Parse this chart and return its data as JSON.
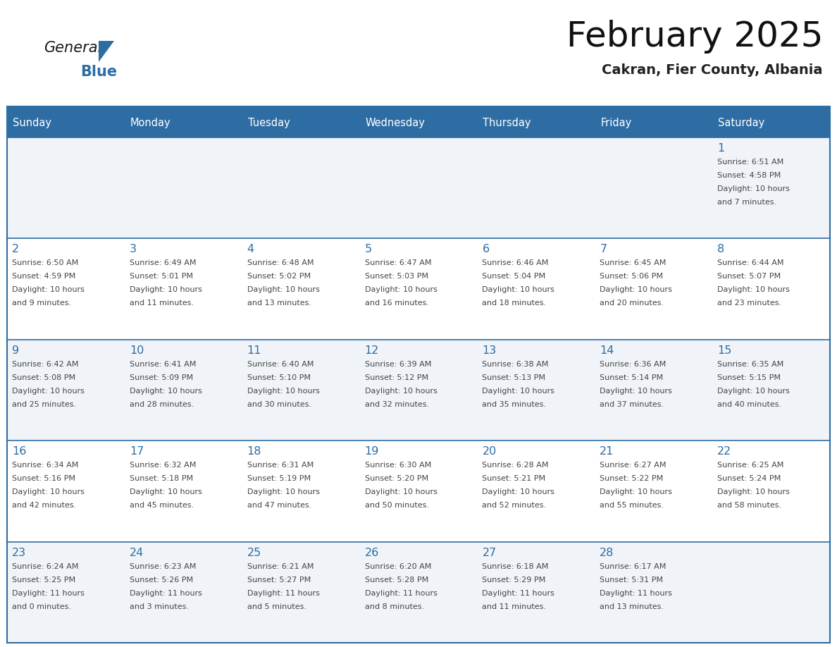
{
  "title": "February 2025",
  "subtitle": "Cakran, Fier County, Albania",
  "header_bg": "#2E6DA4",
  "header_text_color": "#FFFFFF",
  "cell_bg_light": "#F0F4F8",
  "cell_bg_white": "#FFFFFF",
  "day_number_color": "#2E6DA4",
  "info_text_color": "#444444",
  "border_color": "#2E6DA4",
  "grid_line_color": "#2E6DA4",
  "days_of_week": [
    "Sunday",
    "Monday",
    "Tuesday",
    "Wednesday",
    "Thursday",
    "Friday",
    "Saturday"
  ],
  "calendar_data": [
    [
      null,
      null,
      null,
      null,
      null,
      null,
      {
        "day": 1,
        "sunrise": "6:51 AM",
        "sunset": "4:58 PM",
        "daylight_hours": 10,
        "daylight_minutes": 7
      }
    ],
    [
      {
        "day": 2,
        "sunrise": "6:50 AM",
        "sunset": "4:59 PM",
        "daylight_hours": 10,
        "daylight_minutes": 9
      },
      {
        "day": 3,
        "sunrise": "6:49 AM",
        "sunset": "5:01 PM",
        "daylight_hours": 10,
        "daylight_minutes": 11
      },
      {
        "day": 4,
        "sunrise": "6:48 AM",
        "sunset": "5:02 PM",
        "daylight_hours": 10,
        "daylight_minutes": 13
      },
      {
        "day": 5,
        "sunrise": "6:47 AM",
        "sunset": "5:03 PM",
        "daylight_hours": 10,
        "daylight_minutes": 16
      },
      {
        "day": 6,
        "sunrise": "6:46 AM",
        "sunset": "5:04 PM",
        "daylight_hours": 10,
        "daylight_minutes": 18
      },
      {
        "day": 7,
        "sunrise": "6:45 AM",
        "sunset": "5:06 PM",
        "daylight_hours": 10,
        "daylight_minutes": 20
      },
      {
        "day": 8,
        "sunrise": "6:44 AM",
        "sunset": "5:07 PM",
        "daylight_hours": 10,
        "daylight_minutes": 23
      }
    ],
    [
      {
        "day": 9,
        "sunrise": "6:42 AM",
        "sunset": "5:08 PM",
        "daylight_hours": 10,
        "daylight_minutes": 25
      },
      {
        "day": 10,
        "sunrise": "6:41 AM",
        "sunset": "5:09 PM",
        "daylight_hours": 10,
        "daylight_minutes": 28
      },
      {
        "day": 11,
        "sunrise": "6:40 AM",
        "sunset": "5:10 PM",
        "daylight_hours": 10,
        "daylight_minutes": 30
      },
      {
        "day": 12,
        "sunrise": "6:39 AM",
        "sunset": "5:12 PM",
        "daylight_hours": 10,
        "daylight_minutes": 32
      },
      {
        "day": 13,
        "sunrise": "6:38 AM",
        "sunset": "5:13 PM",
        "daylight_hours": 10,
        "daylight_minutes": 35
      },
      {
        "day": 14,
        "sunrise": "6:36 AM",
        "sunset": "5:14 PM",
        "daylight_hours": 10,
        "daylight_minutes": 37
      },
      {
        "day": 15,
        "sunrise": "6:35 AM",
        "sunset": "5:15 PM",
        "daylight_hours": 10,
        "daylight_minutes": 40
      }
    ],
    [
      {
        "day": 16,
        "sunrise": "6:34 AM",
        "sunset": "5:16 PM",
        "daylight_hours": 10,
        "daylight_minutes": 42
      },
      {
        "day": 17,
        "sunrise": "6:32 AM",
        "sunset": "5:18 PM",
        "daylight_hours": 10,
        "daylight_minutes": 45
      },
      {
        "day": 18,
        "sunrise": "6:31 AM",
        "sunset": "5:19 PM",
        "daylight_hours": 10,
        "daylight_minutes": 47
      },
      {
        "day": 19,
        "sunrise": "6:30 AM",
        "sunset": "5:20 PM",
        "daylight_hours": 10,
        "daylight_minutes": 50
      },
      {
        "day": 20,
        "sunrise": "6:28 AM",
        "sunset": "5:21 PM",
        "daylight_hours": 10,
        "daylight_minutes": 52
      },
      {
        "day": 21,
        "sunrise": "6:27 AM",
        "sunset": "5:22 PM",
        "daylight_hours": 10,
        "daylight_minutes": 55
      },
      {
        "day": 22,
        "sunrise": "6:25 AM",
        "sunset": "5:24 PM",
        "daylight_hours": 10,
        "daylight_minutes": 58
      }
    ],
    [
      {
        "day": 23,
        "sunrise": "6:24 AM",
        "sunset": "5:25 PM",
        "daylight_hours": 11,
        "daylight_minutes": 0
      },
      {
        "day": 24,
        "sunrise": "6:23 AM",
        "sunset": "5:26 PM",
        "daylight_hours": 11,
        "daylight_minutes": 3
      },
      {
        "day": 25,
        "sunrise": "6:21 AM",
        "sunset": "5:27 PM",
        "daylight_hours": 11,
        "daylight_minutes": 5
      },
      {
        "day": 26,
        "sunrise": "6:20 AM",
        "sunset": "5:28 PM",
        "daylight_hours": 11,
        "daylight_minutes": 8
      },
      {
        "day": 27,
        "sunrise": "6:18 AM",
        "sunset": "5:29 PM",
        "daylight_hours": 11,
        "daylight_minutes": 11
      },
      {
        "day": 28,
        "sunrise": "6:17 AM",
        "sunset": "5:31 PM",
        "daylight_hours": 11,
        "daylight_minutes": 13
      },
      null
    ]
  ]
}
